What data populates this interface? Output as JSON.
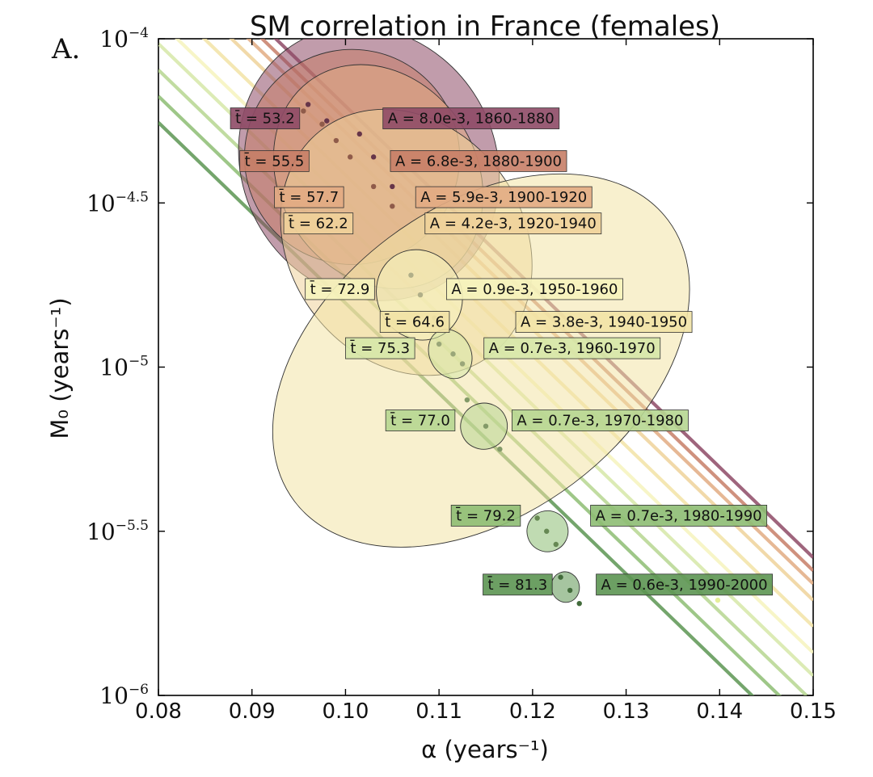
{
  "chart_data": {
    "type": "scatter",
    "panel_label": "A.",
    "title": "SM correlation in France (females)",
    "xlabel": "α (years⁻¹)",
    "ylabel": "M₀ (years⁻¹)",
    "xlim": [
      0.08,
      0.15
    ],
    "ylim": [
      -6,
      -4
    ],
    "y_scale": "log10",
    "x_ticks": [
      {
        "value": 0.08,
        "label": "0.08"
      },
      {
        "value": 0.09,
        "label": "0.09"
      },
      {
        "value": 0.1,
        "label": "0.10"
      },
      {
        "value": 0.11,
        "label": "0.11"
      },
      {
        "value": 0.12,
        "label": "0.12"
      },
      {
        "value": 0.13,
        "label": "0.13"
      },
      {
        "value": 0.14,
        "label": "0.14"
      },
      {
        "value": 0.15,
        "label": "0.15"
      }
    ],
    "y_ticks": [
      {
        "value": -4,
        "base": "10",
        "exp": "−4"
      },
      {
        "value": -4.5,
        "base": "10",
        "exp": "−4.5"
      },
      {
        "value": -5,
        "base": "10",
        "exp": "−5"
      },
      {
        "value": -5.5,
        "base": "10",
        "exp": "−5.5"
      },
      {
        "value": -6,
        "base": "10",
        "exp": "−6"
      }
    ],
    "grid": false,
    "series": [
      {
        "period": "1860-1880",
        "A_label": "A = 8.0e-3, 1860-1880",
        "t_label": "t̄ = 53.2",
        "color": "#8e4a66",
        "line_y_at_0_15": -5.58,
        "ellipse": {
          "cx": 0.1025,
          "cy": -4.38,
          "rx_len": 0.0135,
          "ry_len": 0.055,
          "angle": 31
        },
        "points": [
          [
            0.096,
            -4.2
          ],
          [
            0.098,
            -4.25
          ],
          [
            0.1015,
            -4.29
          ],
          [
            0.103,
            -4.36
          ],
          [
            0.105,
            -4.45
          ]
        ]
      },
      {
        "period": "1880-1900",
        "A_label": "A = 6.8e-3, 1880-1900",
        "t_label": "t̄ = 55.5",
        "color": "#c77e67",
        "line_y_at_0_15": -5.62,
        "ellipse": {
          "cx": 0.1007,
          "cy": -4.36,
          "rx_len": 0.0115,
          "ry_len": 0.042,
          "angle": 32
        },
        "points": [
          [
            0.0955,
            -4.22
          ],
          [
            0.0975,
            -4.26
          ],
          [
            0.099,
            -4.31
          ],
          [
            0.1005,
            -4.36
          ],
          [
            0.103,
            -4.45
          ],
          [
            0.105,
            -4.51
          ]
        ]
      },
      {
        "period": "1900-1920",
        "A_label": "A = 5.9e-3, 1900-1920",
        "t_label": "t̄ = 57.7",
        "color": "#e2ab83",
        "line_y_at_0_15": -5.66,
        "ellipse": {
          "cx": 0.1035,
          "cy": -4.42,
          "rx_len": 0.0105,
          "ry_len": 0.046,
          "angle": 34
        },
        "points": []
      },
      {
        "period": "1920-1940",
        "A_label": "A = 4.2e-3, 1920-1940",
        "t_label": "t̄ = 62.2",
        "color": "#efd29a",
        "line_y_at_0_15": -5.71,
        "ellipse": {
          "cx": 0.1065,
          "cy": -4.62,
          "rx_len": 0.0125,
          "ry_len": 0.055,
          "angle": 36
        },
        "points": []
      },
      {
        "period": "1940-1950",
        "A_label": "A = 3.8e-3, 1940-1950",
        "t_label": "t̄ = 64.6",
        "color": "#f2e3a6",
        "line_y_at_0_15": -5.79,
        "ellipse": {
          "cx": 0.1145,
          "cy": -4.98,
          "rx_len": 0.025,
          "ry_len": 0.06,
          "angle": 37
        },
        "points": []
      },
      {
        "period": "1950-1960",
        "A_label": "A = 0.9e-3, 1950-1960",
        "t_label": "t̄ = 72.9",
        "color": "#f6f3bd",
        "line_y_at_0_15": -5.87,
        "ellipse": {
          "cx": 0.1079,
          "cy": -4.78,
          "rx_len": 0.0045,
          "ry_len": 0.018,
          "angle": 29
        },
        "points": [
          [
            0.107,
            -4.72
          ],
          [
            0.108,
            -4.78
          ],
          [
            0.1095,
            -4.85
          ]
        ]
      },
      {
        "period": "1960-1970",
        "A_label": "A = 0.7e-3, 1960-1970",
        "t_label": "t̄ = 75.3",
        "color": "#d6e7a8",
        "line_y_at_0_15": -5.94,
        "ellipse": {
          "cx": 0.1112,
          "cy": -4.96,
          "rx_len": 0.0022,
          "ry_len": 0.01,
          "angle": 28
        },
        "points": [
          [
            0.11,
            -4.93
          ],
          [
            0.1115,
            -4.96
          ],
          [
            0.1125,
            -4.99
          ]
        ]
      },
      {
        "period": "1970-1980",
        "A_label": "A = 0.7e-3, 1970-1980",
        "t_label": "t̄ = 77.0",
        "color": "#b6d691",
        "line_y_at_0_15": -6.02,
        "ellipse": {
          "cx": 0.1148,
          "cy": -5.18,
          "rx_len": 0.0025,
          "ry_len": 0.009,
          "angle": 21
        },
        "points": [
          [
            0.113,
            -5.1
          ],
          [
            0.115,
            -5.18
          ],
          [
            0.1165,
            -5.25
          ]
        ]
      },
      {
        "period": "1980-1990",
        "A_label": "A = 0.7e-3, 1980-1990",
        "t_label": "t̄ = 79.2",
        "color": "#8dbd73",
        "line_y_at_0_15": -6.1,
        "ellipse": {
          "cx": 0.1216,
          "cy": -5.5,
          "rx_len": 0.0022,
          "ry_len": 0.008,
          "angle": 18
        },
        "points": [
          [
            0.1205,
            -5.46
          ],
          [
            0.1215,
            -5.5
          ],
          [
            0.1225,
            -5.54
          ]
        ]
      },
      {
        "period": "1990-2000",
        "A_label": "A = 0.6e-3, 1990-2000",
        "t_label": "t̄ = 81.3",
        "color": "#5c9552",
        "line_y_at_0_15": -6.18,
        "ellipse": {
          "cx": 0.1235,
          "cy": -5.67,
          "rx_len": 0.0015,
          "ry_len": 0.006,
          "angle": 14
        },
        "points": [
          [
            0.123,
            -5.64
          ],
          [
            0.124,
            -5.68
          ],
          [
            0.125,
            -5.72
          ]
        ]
      }
    ],
    "extra_points": [
      [
        0.1398,
        -5.71
      ]
    ],
    "a_label_positions": [
      {
        "period": "1860-1880",
        "x": 0.104,
        "y": -4.24
      },
      {
        "period": "1880-1900",
        "x": 0.1048,
        "y": -4.37
      },
      {
        "period": "1900-1920",
        "x": 0.1075,
        "y": -4.48
      },
      {
        "period": "1920-1940",
        "x": 0.1085,
        "y": -4.56
      },
      {
        "period": "1950-1960",
        "x": 0.1108,
        "y": -4.76
      },
      {
        "period": "1940-1950",
        "x": 0.1182,
        "y": -4.86
      },
      {
        "period": "1960-1970",
        "x": 0.1148,
        "y": -4.94
      },
      {
        "period": "1970-1980",
        "x": 0.1178,
        "y": -5.16
      },
      {
        "period": "1980-1990",
        "x": 0.1262,
        "y": -5.45
      },
      {
        "period": "1990-2000",
        "x": 0.1268,
        "y": -5.66
      }
    ],
    "t_label_positions": [
      {
        "period": "1860-1880",
        "x": 0.0877,
        "y": -4.24
      },
      {
        "period": "1880-1900",
        "x": 0.0887,
        "y": -4.37
      },
      {
        "period": "1900-1920",
        "x": 0.0924,
        "y": -4.48
      },
      {
        "period": "1920-1940",
        "x": 0.0934,
        "y": -4.56
      },
      {
        "period": "1950-1960",
        "x": 0.0957,
        "y": -4.76
      },
      {
        "period": "1940-1950",
        "x": 0.1037,
        "y": -4.86
      },
      {
        "period": "1960-1970",
        "x": 0.1,
        "y": -4.94
      },
      {
        "period": "1970-1980",
        "x": 0.1043,
        "y": -5.16
      },
      {
        "period": "1980-1990",
        "x": 0.1113,
        "y": -5.45
      },
      {
        "period": "1990-2000",
        "x": 0.1147,
        "y": -5.66
      }
    ]
  }
}
